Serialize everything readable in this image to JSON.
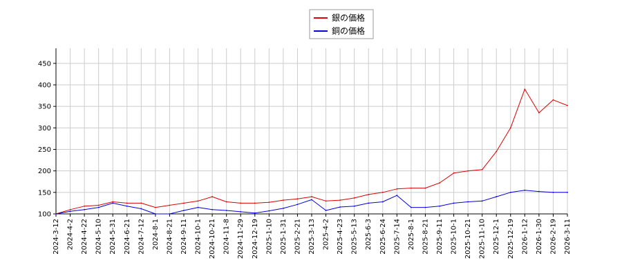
{
  "chart_data": {
    "type": "line",
    "title": "",
    "xlabel": "",
    "ylabel": "",
    "ylim": [
      100,
      485
    ],
    "yticks": [
      100,
      150,
      200,
      250,
      300,
      350,
      400,
      450
    ],
    "grid": true,
    "legend_position": "top-center",
    "x": [
      "2024-3-12",
      "2024-4-2",
      "2024-4-22",
      "2024-5-10",
      "2024-5-31",
      "2024-6-21",
      "2024-7-12",
      "2024-8-1",
      "2024-8-21",
      "2024-9-11",
      "2024-10-1",
      "2024-10-21",
      "2024-11-8",
      "2024-11-29",
      "2024-12-19",
      "2025-1-10",
      "2025-1-31",
      "2025-2-21",
      "2025-3-13",
      "2025-4-2",
      "2025-4-23",
      "2025-5-13",
      "2025-6-3",
      "2025-6-24",
      "2025-7-14",
      "2025-8-1",
      "2025-8-21",
      "2025-9-11",
      "2025-10-1",
      "2025-10-21",
      "2025-11-10",
      "2025-12-1",
      "2025-12-19",
      "2026-1-12",
      "2026-1-30",
      "2026-2-19",
      "2026-3-11"
    ],
    "series": [
      {
        "name": "銀の価格",
        "color": "#dd0000",
        "values": [
          100,
          110,
          118,
          120,
          128,
          125,
          125,
          115,
          120,
          125,
          130,
          140,
          128,
          125,
          125,
          127,
          132,
          135,
          140,
          130,
          132,
          137,
          145,
          150,
          158,
          160,
          160,
          172,
          195,
          200,
          203,
          245,
          300,
          390,
          335,
          365,
          352
        ]
      },
      {
        "name": "銅の価格",
        "color": "#0000dd",
        "values": [
          100,
          106,
          110,
          115,
          125,
          118,
          112,
          100,
          100,
          108,
          115,
          110,
          108,
          105,
          102,
          107,
          113,
          122,
          133,
          108,
          116,
          118,
          125,
          128,
          143,
          115,
          115,
          118,
          125,
          128,
          130,
          140,
          150,
          155,
          152,
          150,
          150
        ]
      }
    ]
  }
}
